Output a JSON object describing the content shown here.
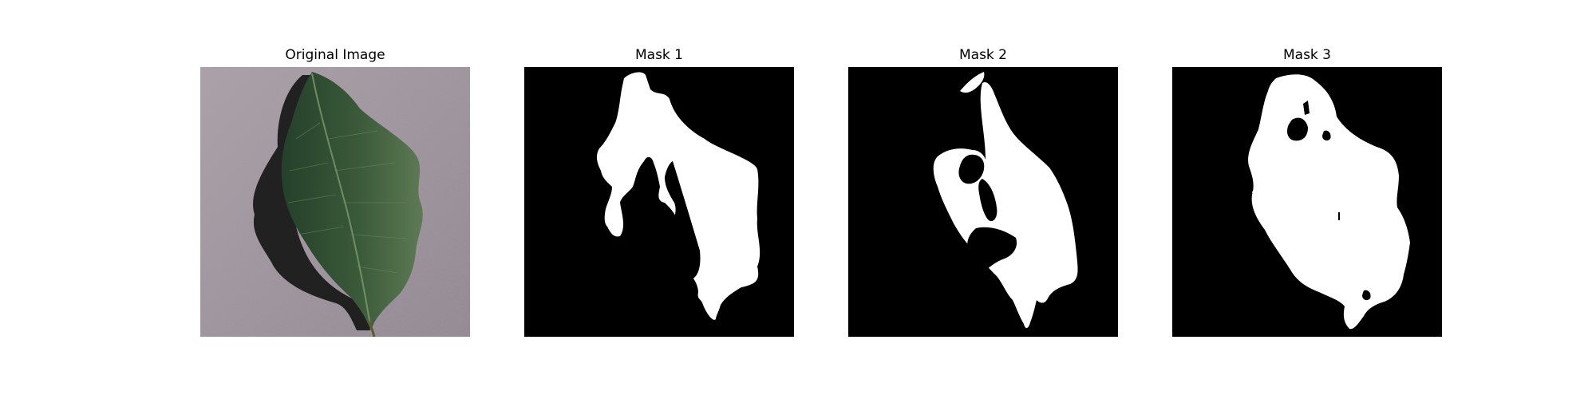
{
  "figure": {
    "panels": [
      {
        "title": "Original Image"
      },
      {
        "title": "Mask 1"
      },
      {
        "title": "Mask 2"
      },
      {
        "title": "Mask 3"
      }
    ]
  },
  "colors": {
    "background": "#ffffff",
    "mask_background": "#000000",
    "mask_foreground": "#ffffff",
    "surface": "#9c9098",
    "leaf_dark": "#1f3a1f",
    "leaf_light": "#4d6b46",
    "shadow": "#121212"
  }
}
